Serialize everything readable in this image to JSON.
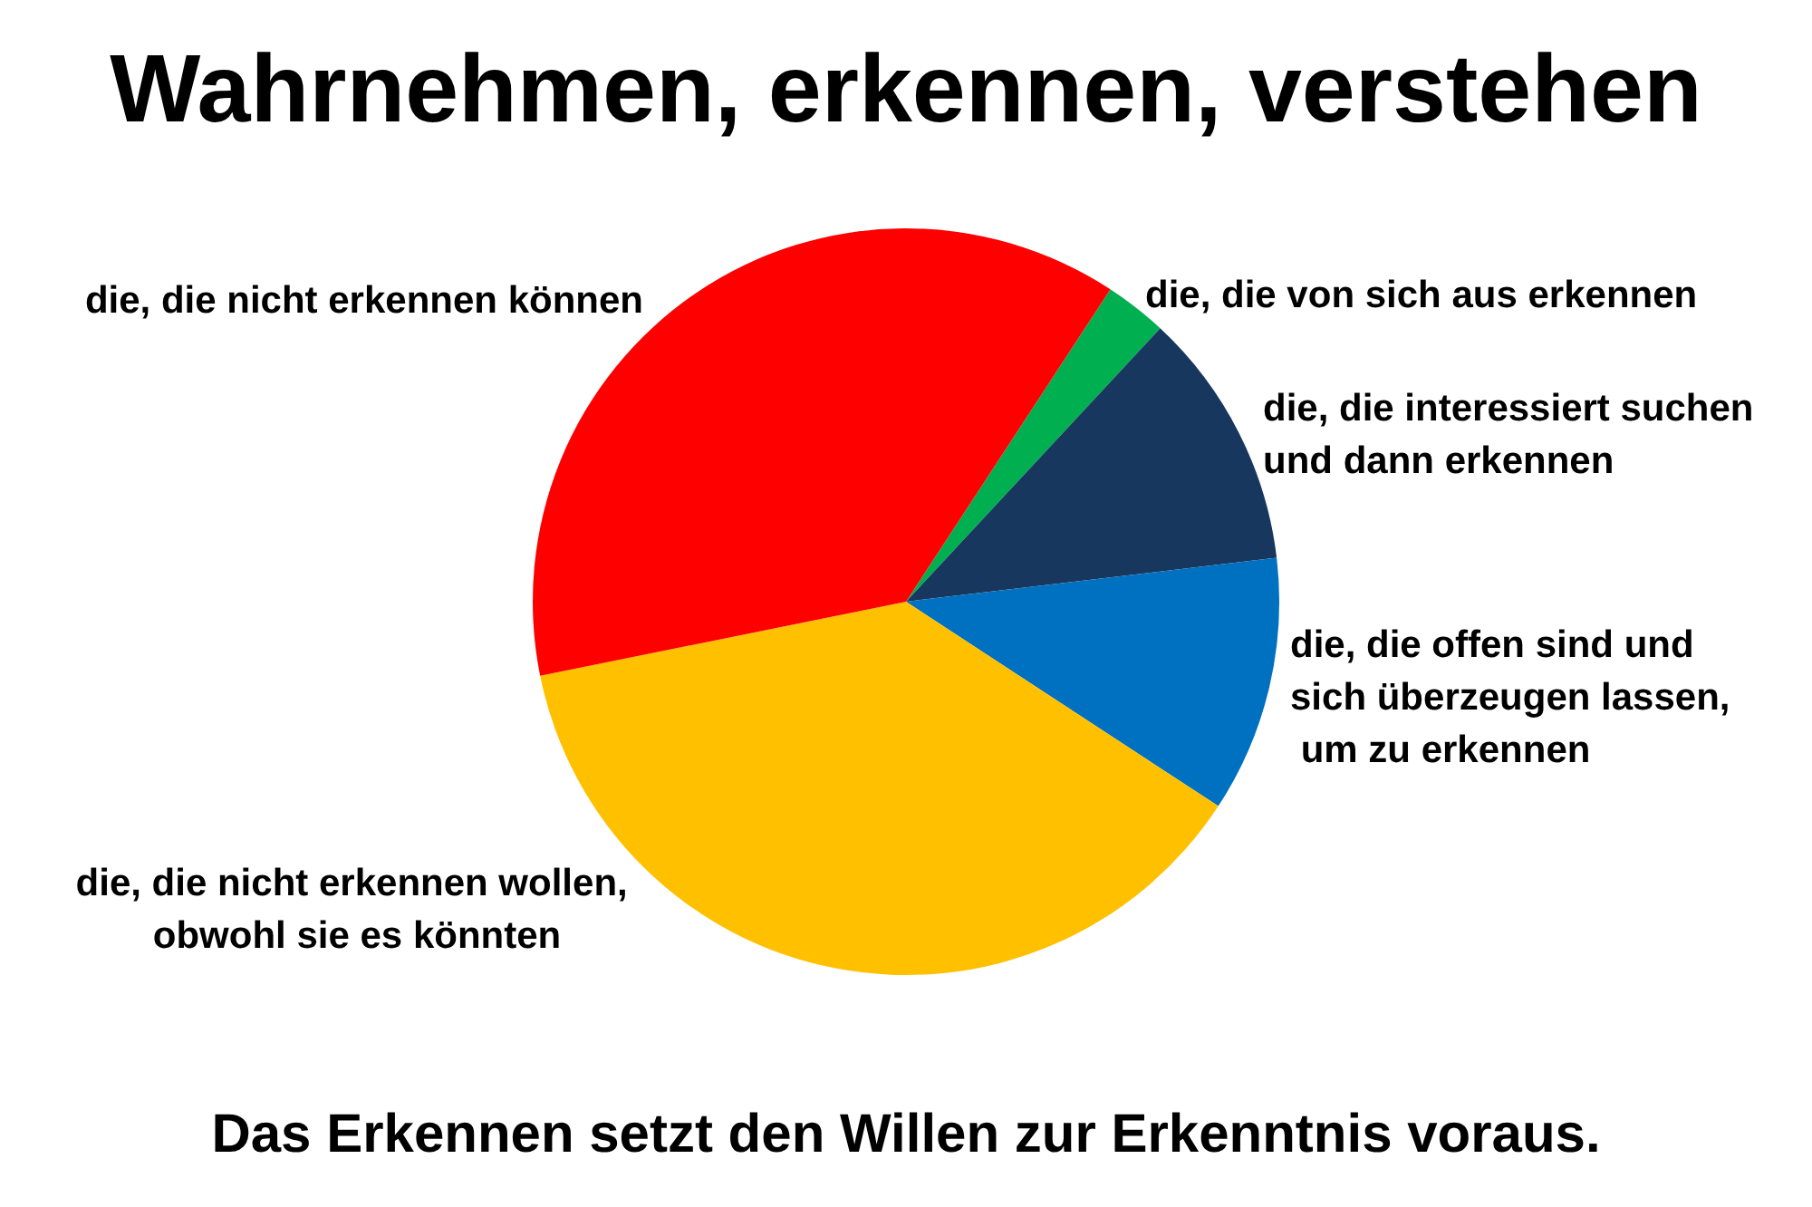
{
  "chart_data": {
    "type": "pie",
    "title": "Wahrnehmen, erkennen, verstehen",
    "categories": [
      "die, die von sich aus erkennen",
      "die, die interessiert suchen und dann erkennen",
      "die, die offen sind und sich überzeugen lassen, um zu erkennen",
      "die, die nicht erkennen wollen, obwohl sie es könnten",
      "die, die nicht erkennen können"
    ],
    "values": [
      2.7,
      11.2,
      11.1,
      37.6,
      37.4
    ],
    "colors": [
      "#00b050",
      "#17375e",
      "#0070c0",
      "#ffc000",
      "#ff0000"
    ],
    "annotations": [
      "Das Erkennen setzt den Willen zur Erkenntnis voraus."
    ]
  }
}
